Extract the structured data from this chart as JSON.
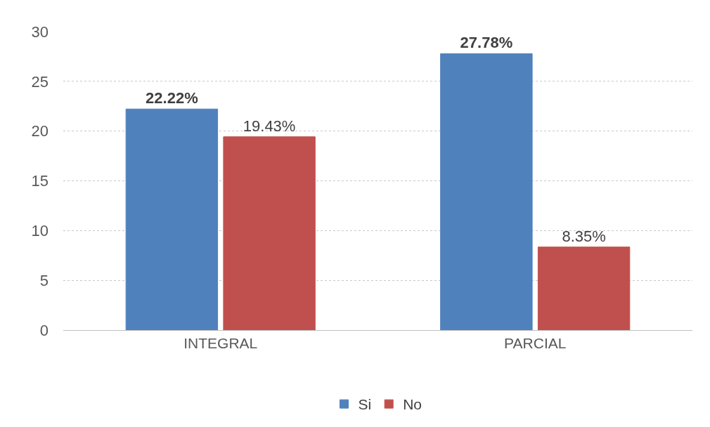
{
  "chart_data": {
    "type": "bar",
    "categories": [
      "INTEGRAL",
      "PARCIAL"
    ],
    "series": [
      {
        "name": "Si",
        "color": "#4f81bd",
        "values": [
          22.22,
          27.78
        ],
        "value_labels": [
          "22.22%",
          "27.78%"
        ]
      },
      {
        "name": "No",
        "color": "#c0504d",
        "values": [
          19.43,
          8.35
        ],
        "value_labels": [
          "19.43%",
          "8.35%"
        ]
      }
    ],
    "ylim": [
      0,
      30
    ],
    "yticks": [
      0,
      5,
      10,
      15,
      20,
      25,
      30
    ],
    "grid": "y",
    "legend": "bottom"
  }
}
